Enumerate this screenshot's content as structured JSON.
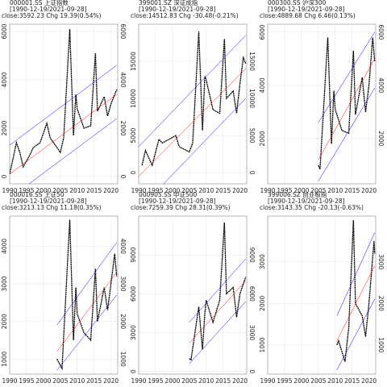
{
  "chart_data": [
    {
      "type": "line",
      "title": "000001.SS 上证指数",
      "subtitle": "[1990-12-19/2021-09-28]",
      "annotation": "close:3592.23 Chg 19.39(0.54%)",
      "grid": true,
      "xlim": [
        1990,
        2022
      ],
      "xticks": [
        1990,
        1995,
        2000,
        2005,
        2010,
        2015,
        2020
      ],
      "ylim": [
        -300,
        6300
      ],
      "yticks": [
        0,
        2000,
        4000,
        6000
      ],
      "series": [
        {
          "color": "#000000",
          "x": [
            1990,
            1992,
            1993,
            1994,
            1996,
            1997,
            1999,
            2001,
            2002,
            2005,
            2006,
            2007.8,
            2008.9,
            2009.6,
            2010,
            2012,
            2014,
            2015.4,
            2016,
            2018,
            2019,
            2020,
            2021.7
          ],
          "values": [
            100,
            1400,
            1000,
            400,
            900,
            1200,
            1400,
            2200,
            1600,
            1000,
            1600,
            6100,
            1700,
            3400,
            2800,
            2000,
            2100,
            5100,
            2700,
            3300,
            2500,
            3000,
            3600
          ]
        },
        {
          "color": "#ff0000",
          "x": [
            1990,
            2021.7
          ],
          "values": [
            100,
            3400
          ]
        },
        {
          "color": "#0000ff",
          "x": [
            1990,
            2021.7
          ],
          "values": [
            1300,
            4600
          ]
        },
        {
          "color": "#0000ff",
          "x": [
            1990,
            2021.7
          ],
          "values": [
            -900,
            2400
          ]
        }
      ]
    },
    {
      "type": "line",
      "title": "399001.SZ 深证成指",
      "subtitle": "[1990-12-19/2021-09-28]",
      "annotation": "close:14512.83 Chg -30.48(-0.21%)",
      "grid": true,
      "xlim": [
        1990,
        2022
      ],
      "xticks": [
        1990,
        1995,
        2000,
        2005,
        2010,
        2015,
        2020
      ],
      "ylim": [
        -1500,
        20000
      ],
      "yticks": [
        0,
        5000,
        10000,
        15000
      ],
      "series": [
        {
          "color": "#000000",
          "x": [
            1991,
            1992,
            1993,
            1994,
            1996,
            1997,
            1999,
            2001,
            2002,
            2005,
            2006,
            2007.8,
            2008.9,
            2009.6,
            2010,
            2012,
            2014,
            2015.4,
            2016,
            2018,
            2019,
            2020,
            2021,
            2021.7
          ],
          "values": [
            1000,
            3000,
            2000,
            1000,
            4500,
            4000,
            4500,
            5000,
            3500,
            2800,
            4000,
            19000,
            5700,
            13000,
            12500,
            8500,
            8000,
            18000,
            10000,
            11000,
            8000,
            12000,
            15500,
            14700
          ]
        },
        {
          "color": "#ff0000",
          "x": [
            1990,
            2021.7
          ],
          "values": [
            -500,
            14000
          ]
        },
        {
          "color": "#0000ff",
          "x": [
            1990,
            2021.7
          ],
          "values": [
            3500,
            18500
          ]
        },
        {
          "color": "#0000ff",
          "x": [
            1990,
            2021.7
          ],
          "values": [
            -5000,
            10000
          ]
        }
      ]
    },
    {
      "type": "line",
      "title": "000300.SS 沪深300",
      "subtitle": "[1990-12-19/2021-09-28]",
      "annotation": "close:4889.68 Chg 6.46(0.13%)",
      "grid": true,
      "xlim": [
        1990,
        2022
      ],
      "xticks": [
        1990,
        1995,
        2000,
        2005,
        2010,
        2015,
        2020
      ],
      "ylim": [
        300,
        6300
      ],
      "yticks": [
        2000,
        4000,
        6000
      ],
      "series": [
        {
          "color": "#000000",
          "x": [
            2005,
            2005.5,
            2007.8,
            2008.9,
            2009.6,
            2010,
            2012,
            2014,
            2015.4,
            2016,
            2018,
            2019,
            2020,
            2021.1,
            2021.7
          ],
          "values": [
            1000,
            850,
            5800,
            1800,
            3800,
            3100,
            2300,
            2200,
            5300,
            2900,
            4300,
            3000,
            4000,
            5800,
            4900
          ]
        },
        {
          "color": "#ff0000",
          "x": [
            2005,
            2021.7
          ],
          "values": [
            1200,
            5000
          ]
        },
        {
          "color": "#0000ff",
          "x": [
            2005,
            2021.7
          ],
          "values": [
            2600,
            6000
          ]
        },
        {
          "color": "#0000ff",
          "x": [
            2005,
            2021.7
          ],
          "values": [
            400,
            3900
          ]
        }
      ]
    },
    {
      "type": "line",
      "title": "000016.SS 上证50",
      "subtitle": "[1990-12-19/2021-09-28]",
      "annotation": "close:3213.13 Chg 11.18(0.35%)",
      "grid": true,
      "xlim": [
        1990,
        2022
      ],
      "xticks": [
        1990,
        1995,
        2000,
        2005,
        2010,
        2015,
        2020
      ],
      "ylim": [
        600,
        4800
      ],
      "yticks": [
        1000,
        2000,
        3000,
        4000
      ],
      "series": [
        {
          "color": "#000000",
          "x": [
            2004,
            2005.5,
            2007.8,
            2008.9,
            2009.6,
            2010,
            2012,
            2014,
            2015.4,
            2016,
            2018,
            2019,
            2020,
            2021.1,
            2021.7
          ],
          "values": [
            1000,
            750,
            4700,
            1500,
            2900,
            2200,
            1700,
            1500,
            3400,
            2000,
            2900,
            2300,
            3000,
            3800,
            3200
          ]
        },
        {
          "color": "#ff0000",
          "x": [
            2004,
            2021.7
          ],
          "values": [
            1200,
            3300
          ]
        },
        {
          "color": "#0000ff",
          "x": [
            2004,
            2021.7
          ],
          "values": [
            1900,
            4100
          ]
        },
        {
          "color": "#0000ff",
          "x": [
            2004,
            2021.7
          ],
          "values": [
            700,
            2700
          ]
        }
      ]
    },
    {
      "type": "line",
      "title": "000905.SS 中证500",
      "subtitle": "[1990-12-19/2021-09-28]",
      "annotation": "close:7259.39 Chg 28.31(0.39%)",
      "grid": true,
      "xlim": [
        1990,
        2022
      ],
      "xticks": [
        1990,
        1995,
        2000,
        2005,
        2010,
        2015,
        2020
      ],
      "ylim": [
        -200,
        12000
      ],
      "yticks": [
        0,
        3000,
        6000,
        9000
      ],
      "series": [
        {
          "color": "#000000",
          "x": [
            2005,
            2005.5,
            2007.8,
            2008.9,
            2009.6,
            2010,
            2012,
            2014,
            2015.4,
            2016,
            2018,
            2019,
            2020,
            2021.7
          ],
          "values": [
            1000,
            900,
            5000,
            1700,
            4500,
            5500,
            3800,
            5500,
            11500,
            6000,
            6500,
            4200,
            6000,
            7300
          ]
        },
        {
          "color": "#ff0000",
          "x": [
            2005,
            2021.7
          ],
          "values": [
            2200,
            7000
          ]
        },
        {
          "color": "#0000ff",
          "x": [
            2005,
            2021.7
          ],
          "values": [
            3800,
            8700
          ]
        },
        {
          "color": "#0000ff",
          "x": [
            2005,
            2021.7
          ],
          "values": [
            600,
            5400
          ]
        }
      ]
    },
    {
      "type": "line",
      "title": "399006.SZ 创业板指",
      "subtitle": "[1990-12-19/2021-09-28]",
      "annotation": "close:3143.35 Chg -20.13(-0.63%)",
      "grid": true,
      "xlim": [
        1990,
        2022
      ],
      "xticks": [
        1990,
        1995,
        2000,
        2005,
        2010,
        2015,
        2020
      ],
      "ylim": [
        300,
        4100
      ],
      "yticks": [
        1000,
        2000,
        3000
      ],
      "series": [
        {
          "color": "#000000",
          "x": [
            2010.5,
            2011,
            2012.9,
            2014,
            2015.4,
            2016,
            2018,
            2019,
            2020,
            2021.5,
            2021.7
          ],
          "values": [
            1000,
            1100,
            600,
            1400,
            4000,
            2000,
            1700,
            1200,
            2000,
            3500,
            3200
          ]
        },
        {
          "color": "#ff0000",
          "x": [
            2010.5,
            2021.7
          ],
          "values": [
            1100,
            2900
          ]
        },
        {
          "color": "#0000ff",
          "x": [
            2010.5,
            2021.7
          ],
          "values": [
            1700,
            3700
          ]
        },
        {
          "color": "#0000ff",
          "x": [
            2010.5,
            2021.7
          ],
          "values": [
            400,
            2100
          ]
        }
      ]
    }
  ]
}
